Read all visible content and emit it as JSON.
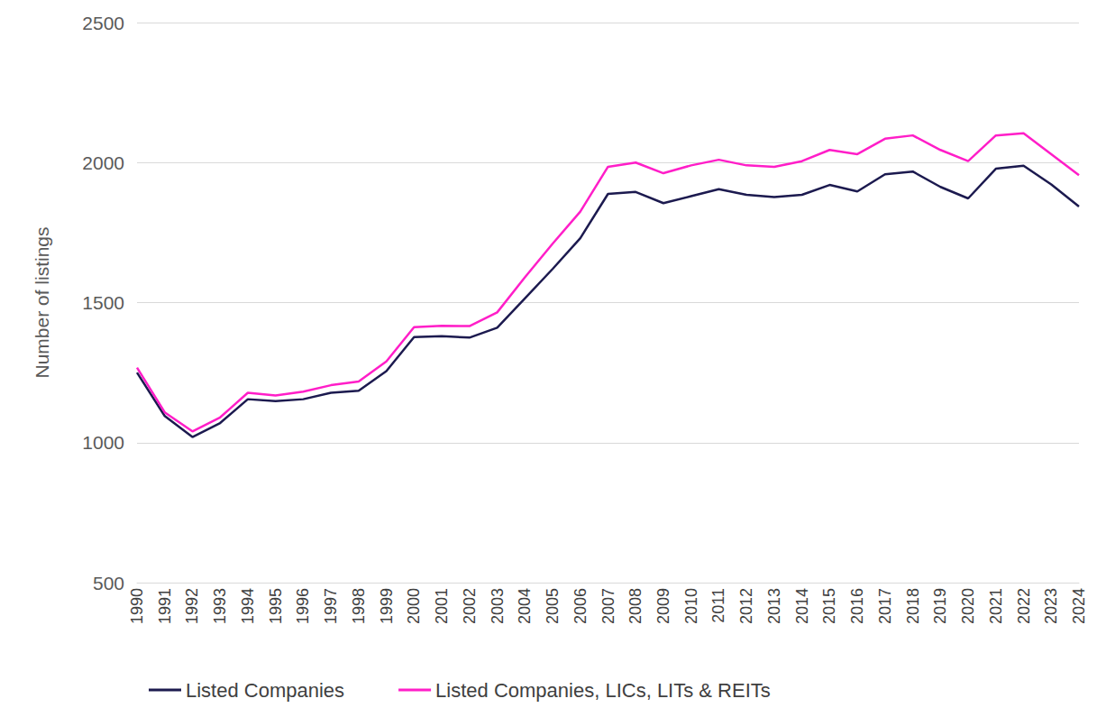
{
  "chart_data": {
    "type": "line",
    "y_label": "Number of listings",
    "categories": [
      "1990",
      "1991",
      "1992",
      "1993",
      "1994",
      "1995",
      "1996",
      "1997",
      "1998",
      "1999",
      "2000",
      "2001",
      "2002",
      "2003",
      "2004",
      "2005",
      "2006",
      "2007",
      "2008",
      "2009",
      "2010",
      "2011",
      "2012",
      "2013",
      "2014",
      "2015",
      "2016",
      "2017",
      "2018",
      "2019",
      "2020",
      "2021",
      "2022",
      "2023",
      "2024"
    ],
    "series": [
      {
        "name": "Listed Companies",
        "color": "#1c1a4f",
        "values": [
          1250,
          1095,
          1020,
          1070,
          1155,
          1148,
          1155,
          1178,
          1185,
          1255,
          1377,
          1380,
          1375,
          1410,
          1515,
          1620,
          1730,
          1888,
          1895,
          1855,
          1880,
          1905,
          1885,
          1877,
          1885,
          1920,
          1897,
          1958,
          1968,
          1913,
          1872,
          1978,
          1989,
          1922,
          1843
        ]
      },
      {
        "name": "Listed Companies, LICs, LITs & REITs",
        "color": "#ff1ec8",
        "values": [
          1268,
          1108,
          1040,
          1090,
          1178,
          1168,
          1182,
          1205,
          1218,
          1290,
          1412,
          1417,
          1416,
          1465,
          1590,
          1710,
          1825,
          1985,
          2000,
          1962,
          1990,
          2010,
          1990,
          1985,
          2005,
          2045,
          2030,
          2085,
          2097,
          2045,
          2005,
          2097,
          2105,
          2030,
          1955
        ]
      }
    ],
    "ylim": [
      500,
      2500
    ],
    "yticks": [
      500,
      1000,
      1500,
      2000,
      2500
    ],
    "grid": true,
    "legend": "bottom"
  }
}
